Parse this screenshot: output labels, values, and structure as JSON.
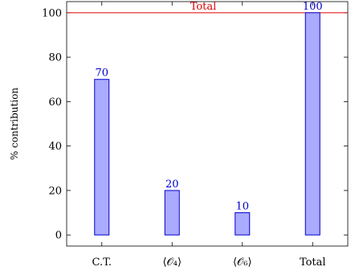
{
  "chart_data": {
    "type": "bar",
    "categories": [
      "C.T.",
      "⟨𝒪₄⟩",
      "⟨𝒪₆⟩",
      "Total"
    ],
    "values": [
      70,
      20,
      10,
      100
    ],
    "data_labels": [
      "70",
      "20",
      "10",
      "100"
    ],
    "title": "",
    "xlabel": "",
    "ylabel": "% contribution",
    "ylim": [
      -5,
      105
    ],
    "yticks": [
      0,
      20,
      40,
      60,
      80,
      100
    ],
    "grid": false,
    "reference_line": {
      "value": 100,
      "label": "Total",
      "color": "#dd0000"
    },
    "colors": {
      "bar_fill": "#aaaaff",
      "bar_stroke": "#0000cc",
      "data_label": "#0000cc"
    }
  }
}
